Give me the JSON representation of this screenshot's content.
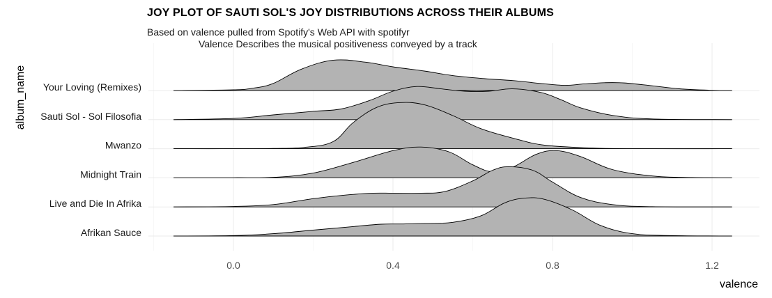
{
  "title": "JOY PLOT OF SAUTI SOL'S JOY DISTRIBUTIONS ACROSS THEIR ALBUMS",
  "subtitle_line1": "Based on valence pulled from Spotify's Web API with spotifyr",
  "subtitle_line2": "Valence Describes the musical positiveness conveyed by a track",
  "chart_data": {
    "type": "area",
    "subtype": "ridgeline",
    "xlabel": "valence",
    "ylabel": "album_name",
    "xlim": [
      -0.3,
      1.32
    ],
    "x_ticks": [
      0.0,
      0.4,
      0.8,
      1.2
    ],
    "x_tick_labels": [
      "0.0",
      "0.4",
      "0.8",
      "1.2"
    ],
    "grid": true,
    "fill_color": "#b3b3b3",
    "line_color": "#000000",
    "categories": [
      "Afrikan Sauce",
      "Live and Die In Afrika",
      "Midnight Train",
      "Mwanzo",
      "Sauti Sol - Sol Filosofia",
      "Your Loving (Remixes)"
    ],
    "series": [
      {
        "name": "Afrikan Sauce",
        "x": [
          -0.15,
          0.0,
          0.1,
          0.2,
          0.3,
          0.37,
          0.42,
          0.48,
          0.55,
          0.62,
          0.68,
          0.73,
          0.78,
          0.85,
          0.92,
          1.0,
          1.1,
          1.25
        ],
        "height": [
          0.0,
          0.02,
          0.1,
          0.25,
          0.4,
          0.5,
          0.51,
          0.53,
          0.58,
          0.85,
          1.4,
          1.6,
          1.55,
          1.1,
          0.45,
          0.1,
          0.02,
          0.0
        ]
      },
      {
        "name": "Live and Die In Afrika",
        "x": [
          -0.15,
          0.0,
          0.1,
          0.2,
          0.28,
          0.35,
          0.4,
          0.47,
          0.53,
          0.6,
          0.65,
          0.69,
          0.75,
          0.8,
          0.87,
          0.95,
          1.05,
          1.25
        ],
        "height": [
          0.0,
          0.02,
          0.1,
          0.35,
          0.5,
          0.58,
          0.58,
          0.58,
          0.65,
          1.1,
          1.55,
          1.7,
          1.55,
          1.05,
          0.4,
          0.1,
          0.01,
          0.0
        ]
      },
      {
        "name": "Midnight Train",
        "x": [
          -0.15,
          0.0,
          0.1,
          0.2,
          0.3,
          0.4,
          0.47,
          0.54,
          0.6,
          0.65,
          0.7,
          0.76,
          0.81,
          0.87,
          0.95,
          1.05,
          1.15,
          1.25
        ],
        "height": [
          0.0,
          0.0,
          0.02,
          0.2,
          0.65,
          1.15,
          1.3,
          1.1,
          0.55,
          0.25,
          0.45,
          1.0,
          1.15,
          0.9,
          0.35,
          0.08,
          0.01,
          0.0
        ]
      },
      {
        "name": "Mwanzo",
        "x": [
          -0.15,
          0.0,
          0.1,
          0.18,
          0.25,
          0.3,
          0.36,
          0.42,
          0.48,
          0.55,
          0.62,
          0.7,
          0.78,
          0.9,
          1.0,
          1.25
        ],
        "height": [
          0.0,
          0.0,
          0.01,
          0.06,
          0.3,
          1.1,
          1.75,
          1.95,
          1.85,
          1.4,
          0.85,
          0.45,
          0.15,
          0.03,
          0.0,
          0.0
        ]
      },
      {
        "name": "Sauti Sol - Sol Filosofia",
        "x": [
          -0.15,
          0.0,
          0.1,
          0.2,
          0.27,
          0.34,
          0.4,
          0.46,
          0.52,
          0.58,
          0.64,
          0.7,
          0.77,
          0.82,
          0.87,
          0.95,
          1.05,
          1.25
        ],
        "height": [
          0.0,
          0.05,
          0.2,
          0.35,
          0.45,
          0.8,
          1.2,
          1.4,
          1.3,
          1.2,
          1.2,
          1.3,
          1.15,
          0.85,
          0.5,
          0.18,
          0.03,
          0.0
        ]
      },
      {
        "name": "Your Loving (Remixes)",
        "x": [
          -0.15,
          0.0,
          0.05,
          0.1,
          0.17,
          0.25,
          0.33,
          0.4,
          0.48,
          0.55,
          0.63,
          0.7,
          0.77,
          0.83,
          0.88,
          0.93,
          0.98,
          1.05,
          1.12,
          1.2,
          1.25
        ],
        "height": [
          0.0,
          0.03,
          0.1,
          0.3,
          0.9,
          1.28,
          1.2,
          1.0,
          0.82,
          0.63,
          0.5,
          0.42,
          0.3,
          0.22,
          0.28,
          0.33,
          0.32,
          0.2,
          0.07,
          0.01,
          0.0
        ]
      }
    ]
  }
}
